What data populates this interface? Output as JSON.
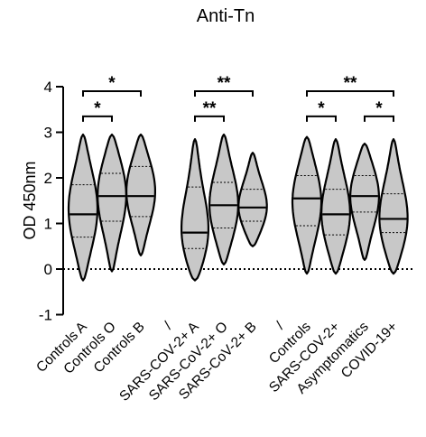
{
  "chart_data": {
    "type": "violin",
    "title": "Anti-Tn",
    "ylabel": "OD 450nm",
    "xlabel": "",
    "ylim": [
      -1,
      4
    ],
    "yticks": [
      -1,
      0,
      1,
      2,
      3,
      4
    ],
    "reference_line": {
      "y": 0,
      "style": "dotted"
    },
    "categories": [
      "Controls A",
      "Controls O",
      "Controls B",
      "/",
      "SARS-COV-2+ A",
      "SARS-CoV-2+ O",
      "SARS-CoV-2+ B",
      "/",
      "Controls",
      "SARS-COV-2+",
      "Asymptomatics",
      "COVID-19+"
    ],
    "violins": [
      {
        "category": "Controls A",
        "min": -0.25,
        "max": 2.95,
        "q1": 0.7,
        "median": 1.2,
        "q3": 1.85,
        "mode": 1.3
      },
      {
        "category": "Controls O",
        "min": -0.05,
        "max": 2.95,
        "q1": 1.05,
        "median": 1.6,
        "q3": 2.1,
        "mode": 1.7
      },
      {
        "category": "Controls B",
        "min": 0.3,
        "max": 2.95,
        "q1": 1.15,
        "median": 1.6,
        "q3": 2.25,
        "mode": 1.75
      },
      {
        "category": "SARS-COV-2+ A",
        "min": -0.25,
        "max": 2.85,
        "q1": 0.45,
        "median": 0.8,
        "q3": 1.8,
        "mode": 0.65
      },
      {
        "category": "SARS-CoV-2+ O",
        "min": 0.1,
        "max": 2.95,
        "q1": 0.9,
        "median": 1.4,
        "q3": 1.9,
        "mode": 1.35
      },
      {
        "category": "SARS-CoV-2+ B",
        "min": 0.5,
        "max": 2.55,
        "q1": 1.05,
        "median": 1.35,
        "q3": 1.75,
        "mode": 1.3
      },
      {
        "category": "Controls",
        "min": -0.1,
        "max": 2.9,
        "q1": 0.95,
        "median": 1.55,
        "q3": 2.05,
        "mode": 1.5
      },
      {
        "category": "SARS-COV-2+",
        "min": -0.1,
        "max": 2.85,
        "q1": 0.75,
        "median": 1.2,
        "q3": 1.75,
        "mode": 1.15
      },
      {
        "category": "Asymptomatics",
        "min": 0.2,
        "max": 2.75,
        "q1": 1.25,
        "median": 1.6,
        "q3": 2.05,
        "mode": 1.65
      },
      {
        "category": "COVID-19+",
        "min": -0.1,
        "max": 2.85,
        "q1": 0.8,
        "median": 1.1,
        "q3": 1.65,
        "mode": 1.0
      }
    ],
    "significance": [
      {
        "from": "Controls A",
        "to": "Controls B",
        "y": 3.9,
        "label": "*"
      },
      {
        "from": "Controls A",
        "to": "Controls O",
        "y": 3.35,
        "label": "*"
      },
      {
        "from": "SARS-COV-2+ A",
        "to": "SARS-CoV-2+ B",
        "y": 3.9,
        "label": "**"
      },
      {
        "from": "SARS-COV-2+ A",
        "to": "SARS-CoV-2+ O",
        "y": 3.35,
        "label": "**"
      },
      {
        "from": "Controls",
        "to": "COVID-19+",
        "y": 3.9,
        "label": "**"
      },
      {
        "from": "Controls",
        "to": "SARS-COV-2+",
        "y": 3.35,
        "label": "*"
      },
      {
        "from": "Asymptomatics",
        "to": "COVID-19+",
        "y": 3.35,
        "label": "*"
      }
    ],
    "colors": {
      "violin_fill": "#c8c8c8",
      "stroke": "#000000"
    },
    "grid": false,
    "legend": "none"
  }
}
